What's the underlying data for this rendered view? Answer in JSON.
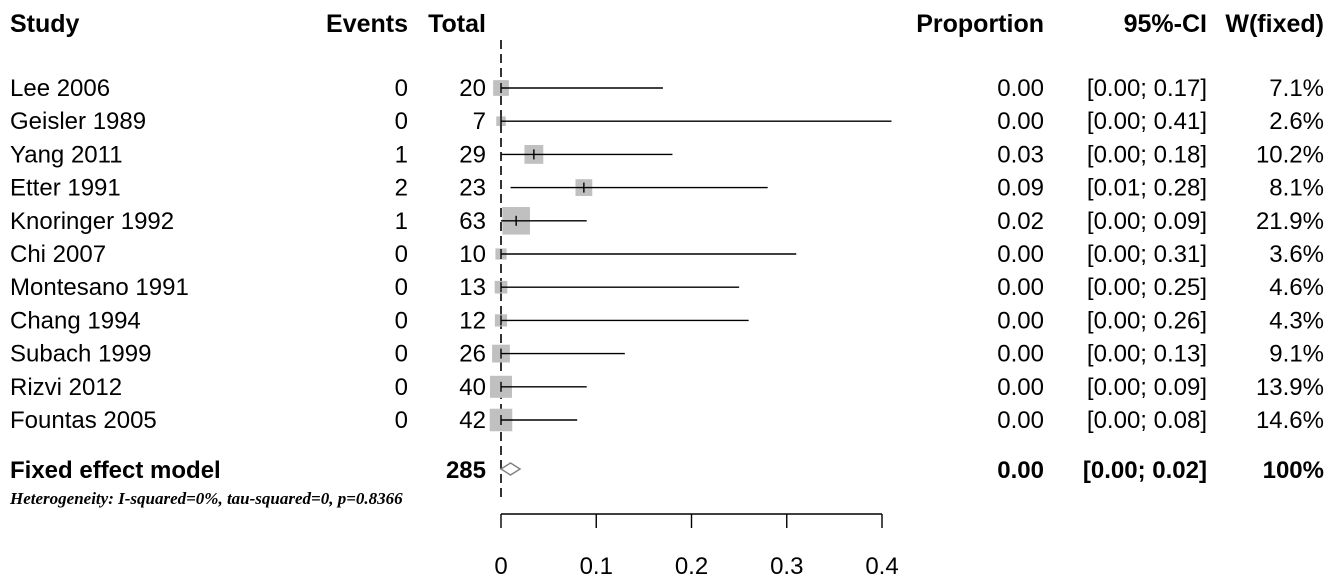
{
  "chart_data": {
    "type": "forest",
    "columns": {
      "study": "Study",
      "events": "Events",
      "total": "Total",
      "proportion": "Proportion",
      "ci": "95%-CI",
      "weight": "W(fixed)"
    },
    "studies": [
      {
        "study": "Lee 2006",
        "events": "0",
        "total": "20",
        "proportion": "0.00",
        "ci": "[0.00; 0.17]",
        "weight": "7.1%",
        "est": 0.0,
        "lower": 0.0,
        "upper": 0.17,
        "w": 7.1
      },
      {
        "study": "Geisler 1989",
        "events": "0",
        "total": "7",
        "proportion": "0.00",
        "ci": "[0.00; 0.41]",
        "weight": "2.6%",
        "est": 0.0,
        "lower": 0.0,
        "upper": 0.41,
        "w": 2.6
      },
      {
        "study": "Yang 2011",
        "events": "1",
        "total": "29",
        "proportion": "0.03",
        "ci": "[0.00; 0.18]",
        "weight": "10.2%",
        "est": 0.0345,
        "lower": 0.0,
        "upper": 0.18,
        "w": 10.2
      },
      {
        "study": "Etter 1991",
        "events": "2",
        "total": "23",
        "proportion": "0.09",
        "ci": "[0.01; 0.28]",
        "weight": "8.1%",
        "est": 0.087,
        "lower": 0.01,
        "upper": 0.28,
        "w": 8.1
      },
      {
        "study": "Knoringer 1992",
        "events": "1",
        "total": "63",
        "proportion": "0.02",
        "ci": "[0.00; 0.09]",
        "weight": "21.9%",
        "est": 0.0159,
        "lower": 0.0,
        "upper": 0.09,
        "w": 21.9
      },
      {
        "study": "Chi 2007",
        "events": "0",
        "total": "10",
        "proportion": "0.00",
        "ci": "[0.00; 0.31]",
        "weight": "3.6%",
        "est": 0.0,
        "lower": 0.0,
        "upper": 0.31,
        "w": 3.6
      },
      {
        "study": "Montesano 1991",
        "events": "0",
        "total": "13",
        "proportion": "0.00",
        "ci": "[0.00; 0.25]",
        "weight": "4.6%",
        "est": 0.0,
        "lower": 0.0,
        "upper": 0.25,
        "w": 4.6
      },
      {
        "study": "Chang 1994",
        "events": "0",
        "total": "12",
        "proportion": "0.00",
        "ci": "[0.00; 0.26]",
        "weight": "4.3%",
        "est": 0.0,
        "lower": 0.0,
        "upper": 0.26,
        "w": 4.3
      },
      {
        "study": "Subach 1999",
        "events": "0",
        "total": "26",
        "proportion": "0.00",
        "ci": "[0.00; 0.13]",
        "weight": "9.1%",
        "est": 0.0,
        "lower": 0.0,
        "upper": 0.13,
        "w": 9.1
      },
      {
        "study": "Rizvi 2012",
        "events": "0",
        "total": "40",
        "proportion": "0.00",
        "ci": "[0.00; 0.09]",
        "weight": "13.9%",
        "est": 0.0,
        "lower": 0.0,
        "upper": 0.09,
        "w": 13.9
      },
      {
        "study": "Fountas 2005",
        "events": "0",
        "total": "42",
        "proportion": "0.00",
        "ci": "[0.00; 0.08]",
        "weight": "14.6%",
        "est": 0.0,
        "lower": 0.0,
        "upper": 0.08,
        "w": 14.6
      }
    ],
    "pooled": {
      "study": "Fixed effect model",
      "total": "285",
      "proportion": "0.00",
      "ci": "[0.00; 0.02]",
      "weight": "100%",
      "est": 0.0,
      "lower": 0.0,
      "upper": 0.02
    },
    "heterogeneity": "Heterogeneity: I-squared=0%, tau-squared=0, p=0.8366",
    "x_ticks": [
      0,
      0.1,
      0.2,
      0.3,
      0.4
    ],
    "x_tick_labels": [
      "0",
      "0.1",
      "0.2",
      "0.3",
      "0.4"
    ],
    "xlim": [
      0,
      0.4
    ],
    "reference_line": 0,
    "square_color": "#c0c0c0",
    "line_color": "#000000"
  }
}
